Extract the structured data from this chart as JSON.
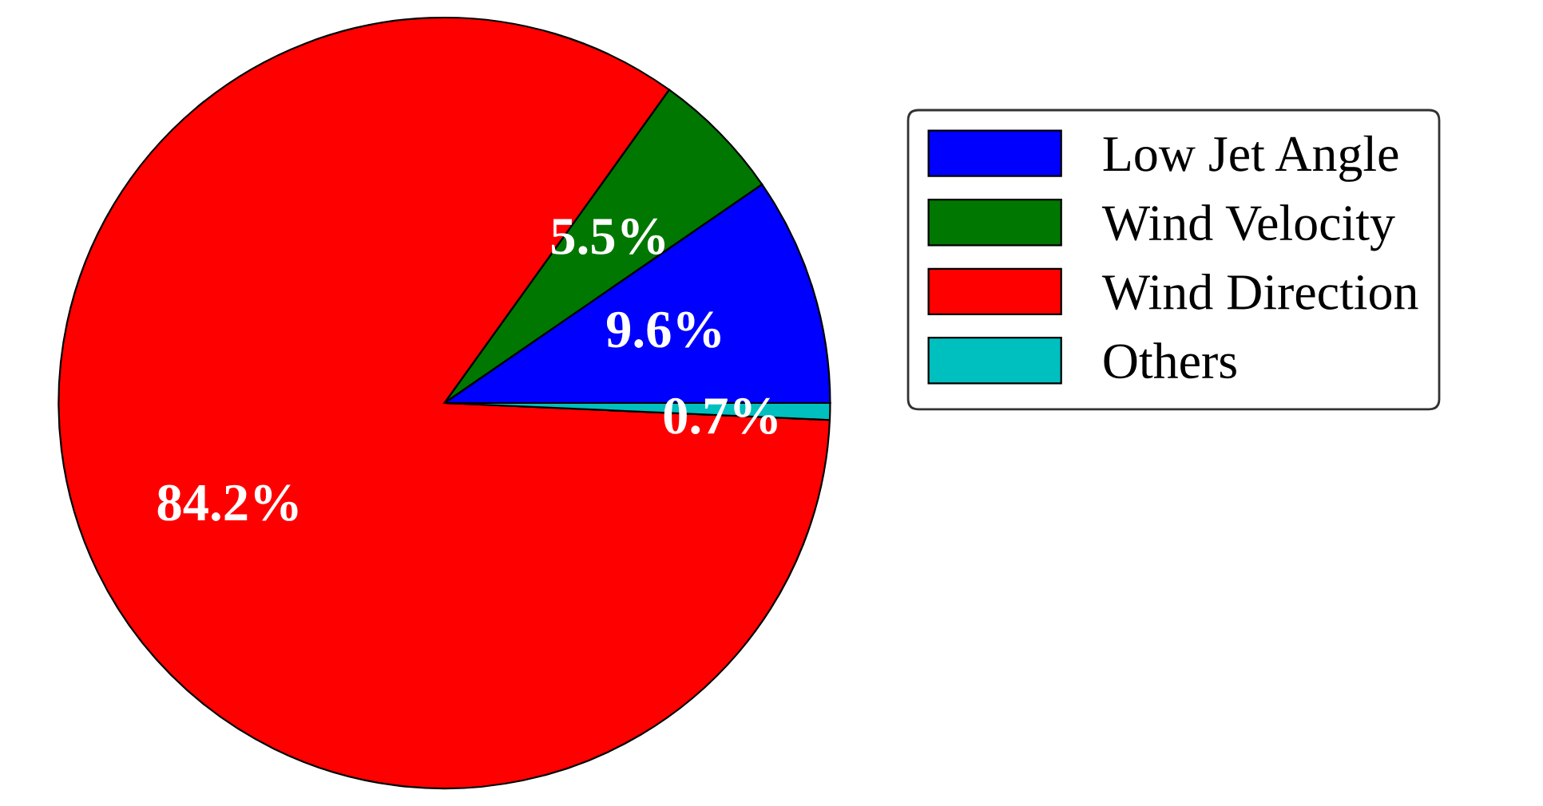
{
  "chart_data": {
    "type": "pie",
    "categories": [
      "Low Jet Angle",
      "Wind Velocity",
      "Wind Direction",
      "Others"
    ],
    "values": [
      9.6,
      5.5,
      84.2,
      0.7
    ],
    "colors": [
      "#0000ff",
      "#007700",
      "#ff0000",
      "#00bfbf"
    ],
    "value_labels": [
      "9.6%",
      "5.5%",
      "84.2%",
      "0.7%"
    ],
    "legend": "right"
  }
}
